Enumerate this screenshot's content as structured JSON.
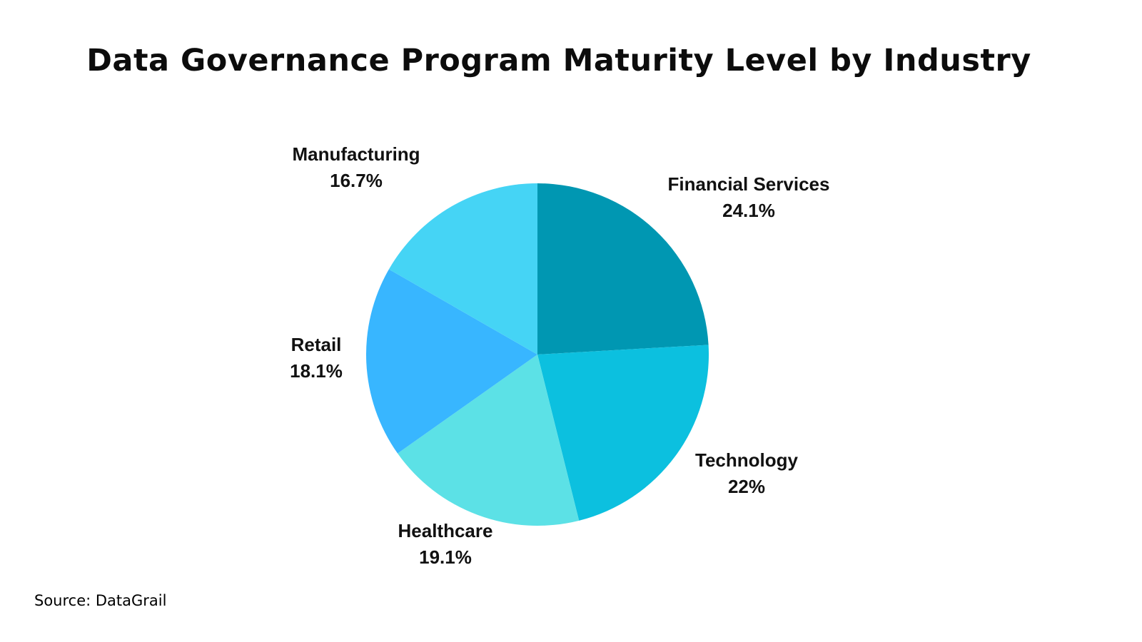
{
  "title": "Data Governance Program Maturity Level by Industry",
  "source": "Source: DataGrail",
  "colors": {
    "background": "#ffffff",
    "text": "#0d0d0d"
  },
  "chart_data": {
    "type": "pie",
    "title": "Data Governance Program Maturity Level by Industry",
    "start_position": "12-o-clock",
    "direction": "clockwise",
    "legend_position": "outside-labels",
    "slices": [
      {
        "label": "Financial Services",
        "value": 24.1,
        "pct_label": "24.1%",
        "color": "#0097B2"
      },
      {
        "label": "Technology",
        "value": 22,
        "pct_label": "22%",
        "color": "#0CC0DF"
      },
      {
        "label": "Healthcare",
        "value": 19.1,
        "pct_label": "19.1%",
        "color": "#5CE1E6"
      },
      {
        "label": "Retail",
        "value": 18.1,
        "pct_label": "18.1%",
        "color": "#38B6FF"
      },
      {
        "label": "Manufacturing",
        "value": 16.7,
        "pct_label": "16.7%",
        "color": "#45D4F5"
      }
    ]
  }
}
